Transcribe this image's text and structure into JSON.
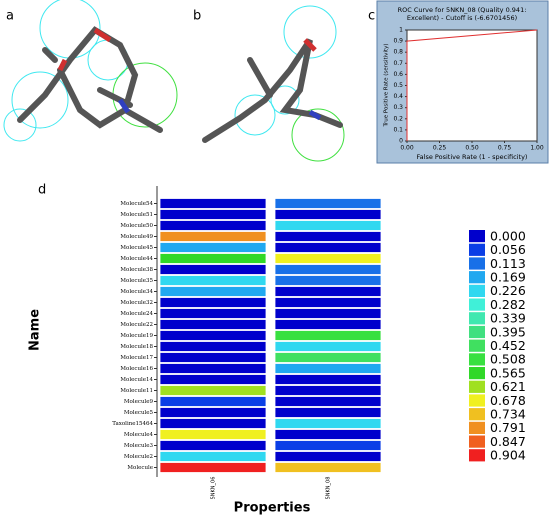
{
  "panel_labels": [
    "a",
    "b",
    "c",
    "d"
  ],
  "chart_data": [
    {
      "type": "line",
      "title": [
        "ROC Curve for  5NKN_08  (Quality 0.941:",
        "Excellent)  - Cutoff is  (-6.6701456)"
      ],
      "x_label": "False Positive Rate (1 - specificity)",
      "y_label": "True Positive Rate (sensitivity)",
      "x": [
        0,
        0,
        1
      ],
      "series": [
        {
          "color": "#e03030",
          "values": [
            0,
            0.9,
            1
          ]
        }
      ],
      "xlim": [
        0,
        1
      ],
      "ylim": [
        0,
        1
      ],
      "xticks": [
        {
          "value": 0,
          "label": "0.00"
        },
        {
          "value": 0.25,
          "label": "0.25"
        },
        {
          "value": 0.5,
          "label": "0.50"
        },
        {
          "value": 0.75,
          "label": "0.75"
        },
        {
          "value": 1,
          "label": "1.00"
        }
      ],
      "yticks": [
        0,
        0.1,
        0.2,
        0.3,
        0.4,
        0.5,
        0.6,
        0.7,
        0.8,
        0.9,
        1
      ]
    },
    {
      "type": "heatmap",
      "y_label": "Name",
      "x_label": "Properties",
      "columns": [
        "5NKN_06",
        "5NKN_08"
      ],
      "rows": [
        "Molecule54",
        "Molecule51",
        "Molecule50",
        "Molecule49",
        "Molecule45",
        "Molecule44",
        "Molecule38",
        "Molecule35",
        "Molecule34",
        "Molecule32",
        "Molecule24",
        "Molecule22",
        "Molecule19",
        "Molecule18",
        "Molecule17",
        "Molecule16",
        "Molecule14",
        "Molecule11",
        "Molecule9",
        "Molecule5",
        "Taxoline15464",
        "Molecule4",
        "Molecule3",
        "Molecule2",
        "Molecule"
      ],
      "values": [
        [
          0,
          0.113
        ],
        [
          0,
          0
        ],
        [
          0,
          0.226
        ],
        [
          0.791,
          0
        ],
        [
          0.169,
          0
        ],
        [
          0.565,
          0.678
        ],
        [
          0,
          0.113
        ],
        [
          0.226,
          0.113
        ],
        [
          0.169,
          0
        ],
        [
          0,
          0
        ],
        [
          0,
          0
        ],
        [
          0,
          0
        ],
        [
          0,
          0.508
        ],
        [
          0,
          0.226
        ],
        [
          0,
          0.452
        ],
        [
          0,
          0.169
        ],
        [
          0,
          0
        ],
        [
          0.621,
          0
        ],
        [
          0.056,
          0
        ],
        [
          0,
          0
        ],
        [
          0,
          0.226
        ],
        [
          0.678,
          0
        ],
        [
          0,
          0.056
        ],
        [
          0.226,
          0
        ],
        [
          0.904,
          0.734
        ]
      ],
      "colorbar_ticks": [
        {
          "value": 0,
          "label": "0.000"
        },
        {
          "value": 0.056,
          "label": "0.056"
        },
        {
          "value": 0.113,
          "label": "0.113"
        },
        {
          "value": 0.169,
          "label": "0.169"
        },
        {
          "value": 0.226,
          "label": "0.226"
        },
        {
          "value": 0.282,
          "label": "0.282"
        },
        {
          "value": 0.339,
          "label": "0.339"
        },
        {
          "value": 0.395,
          "label": "0.395"
        },
        {
          "value": 0.452,
          "label": "0.452"
        },
        {
          "value": 0.508,
          "label": "0.508"
        },
        {
          "value": 0.565,
          "label": "0.565"
        },
        {
          "value": 0.621,
          "label": "0.621"
        },
        {
          "value": 0.678,
          "label": "0.678"
        },
        {
          "value": 0.734,
          "label": "0.734"
        },
        {
          "value": 0.791,
          "label": "0.791"
        },
        {
          "value": 0.847,
          "label": "0.847"
        },
        {
          "value": 0.904,
          "label": "0.904"
        }
      ],
      "colorbar_colors": [
        "#0000cc",
        "#0a3ee6",
        "#1870e8",
        "#20a8f0",
        "#30d8f0",
        "#40f0d8",
        "#40e8b0",
        "#40e080",
        "#40e060",
        "#38e040",
        "#30d828",
        "#a0e020",
        "#f0f020",
        "#f0c020",
        "#f09020",
        "#f06020",
        "#f02020"
      ]
    }
  ]
}
